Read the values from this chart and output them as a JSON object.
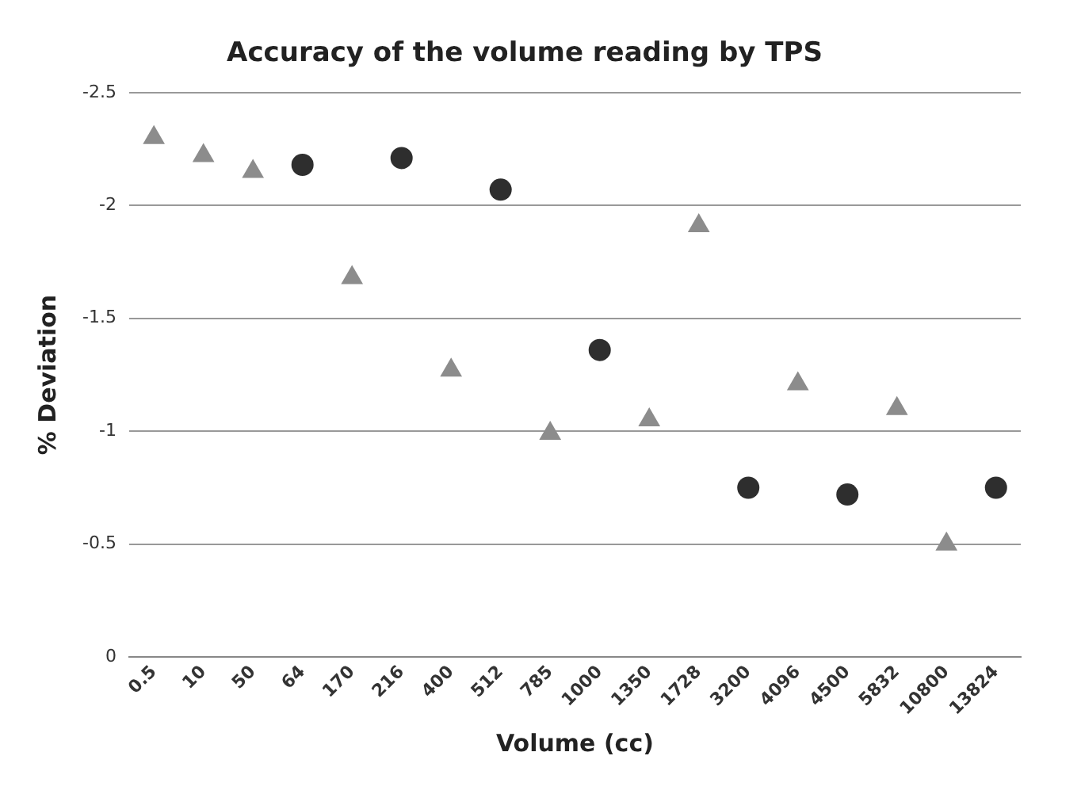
{
  "chart_data": {
    "type": "scatter",
    "title": "Accuracy of the volume reading by TPS",
    "xlabel": "Volume (cc)",
    "ylabel": "% Deviation",
    "categories": [
      "0.5",
      "10",
      "50",
      "64",
      "170",
      "216",
      "400",
      "512",
      "785",
      "1000",
      "1350",
      "1728",
      "3200",
      "4096",
      "4500",
      "5832",
      "10800",
      "13824"
    ],
    "series": [
      {
        "color": "#8c8c8c",
        "marker": "triangle",
        "values": [
          -2.3,
          -2.22,
          -2.15,
          null,
          -1.68,
          null,
          -1.27,
          null,
          -0.99,
          null,
          -1.05,
          -1.91,
          null,
          -1.21,
          null,
          -1.1,
          -0.5,
          null
        ]
      },
      {
        "color": "#2e2e2e",
        "marker": "circle",
        "values": [
          null,
          null,
          null,
          -2.18,
          null,
          -2.21,
          null,
          -2.07,
          null,
          -1.36,
          null,
          null,
          -0.75,
          null,
          -0.72,
          null,
          null,
          -0.75
        ]
      }
    ],
    "ylim": [
      0,
      -2.5
    ],
    "yticks": [
      0,
      -0.5,
      -1,
      -1.5,
      -2,
      -2.5
    ],
    "grid": "y",
    "legend": false
  }
}
